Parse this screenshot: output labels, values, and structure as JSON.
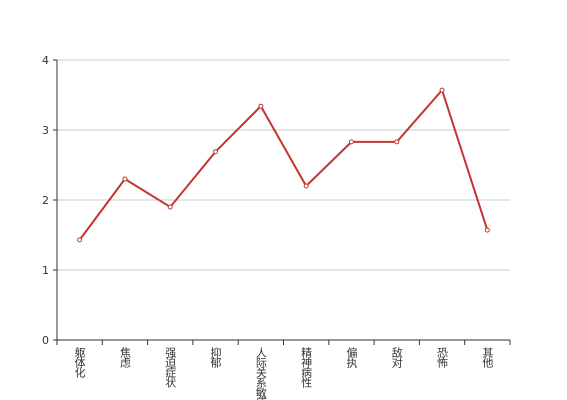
{
  "chart_data": {
    "type": "line",
    "categories": [
      "躯体化",
      "焦虑",
      "强迫症状",
      "抑郁",
      "人际关系敏感",
      "精神病性",
      "偏执",
      "敌对",
      "恐怖",
      "其他"
    ],
    "series": [
      {
        "color": "#c23531",
        "values": [
          1.43,
          2.3,
          1.9,
          2.69,
          3.34,
          2.2,
          2.83,
          2.83,
          3.57,
          1.57
        ]
      }
    ],
    "ylim": [
      0,
      4
    ],
    "yticks": [
      0,
      1,
      2,
      3,
      4
    ],
    "grid": true
  }
}
